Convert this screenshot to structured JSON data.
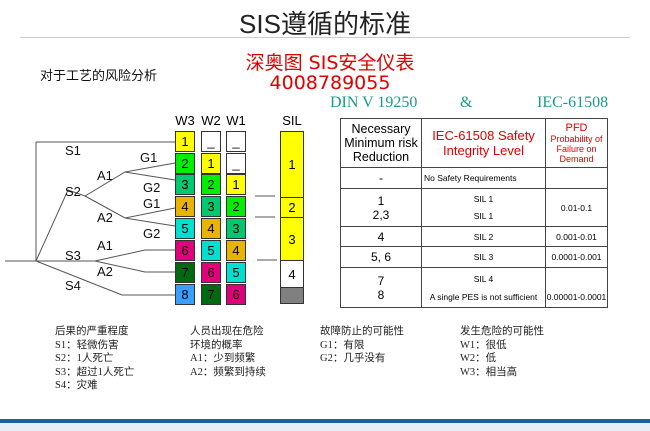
{
  "title": "SIS遵循的标准",
  "promo": {
    "line1": "深奥图 SIS安全仪表",
    "line2": "4008789055"
  },
  "subtitle": "对于工艺的风险分析",
  "standards": {
    "left": "DIN V 19250",
    "amp": "&",
    "right": "IEC-61508"
  },
  "tree_labels": [
    "S1",
    "G1",
    "A1",
    "S2",
    "G2",
    "G1",
    "A2",
    "G2",
    "A1",
    "S3",
    "A2",
    "S4"
  ],
  "columns": {
    "w3": "W3",
    "w2": "W2",
    "w1": "W1",
    "sil": "SIL"
  },
  "w3": [
    "1",
    "2",
    "3",
    "4",
    "5",
    "6",
    "7",
    "8"
  ],
  "w2": [
    "_",
    "1",
    "2",
    "3",
    "4",
    "5",
    "6",
    "7"
  ],
  "w1": [
    "_",
    "_",
    "1",
    "2",
    "3",
    "4",
    "5",
    "6"
  ],
  "sil": [
    "1",
    "2",
    "3",
    "4",
    ""
  ],
  "colors": {
    "1": "#ffff00",
    "2": "#00ee00",
    "3": "#00c86e",
    "4": "#e8b400",
    "5": "#00e0d0",
    "6": "#e0007a",
    "7": "#006a10",
    "8": "#3aa0ff",
    "_": "#ffffff",
    "gray": "#808080"
  },
  "table": {
    "headers": [
      "Necessary Minimum risk Reduction",
      "IEC-61508 Safety Integrity Level",
      "PFD",
      "Probability of Failure on Demand"
    ],
    "rows": [
      {
        "reduction": "-",
        "sil": "No Safety Requirements",
        "pfd": ""
      },
      {
        "reduction": "1",
        "sil": "SIL 1",
        "reduction2": "2,3",
        "sil2": "SIL 1",
        "pfd": "0.01-0.1"
      },
      {
        "reduction": "4",
        "sil": "SIL 2",
        "pfd": "0.001-0.01"
      },
      {
        "reduction": "5, 6",
        "sil": "SIL 3",
        "pfd": "0.0001-0.001"
      },
      {
        "reduction": "7",
        "sil": "SIL 4",
        "reduction2": "8",
        "sil2": "A single PES is not sufficient",
        "pfd": "0.00001-0.0001"
      }
    ]
  },
  "legend": [
    {
      "title": "后果的严重程度",
      "items": [
        "S1：轻微伤害",
        "S2：1人死亡",
        "S3：超过1人死亡",
        "S4：灾难"
      ]
    },
    {
      "title": "人员出现在危险\n环境的概率",
      "items": [
        "A1：少到频繁",
        "A2：频繁到持续"
      ]
    },
    {
      "title": "故障防止的可能性",
      "items": [
        "G1：有限",
        "G2：几乎没有"
      ]
    },
    {
      "title": "发生危险的可能性",
      "items": [
        "W1：很低",
        "W2：低",
        "W3：相当高"
      ]
    }
  ]
}
